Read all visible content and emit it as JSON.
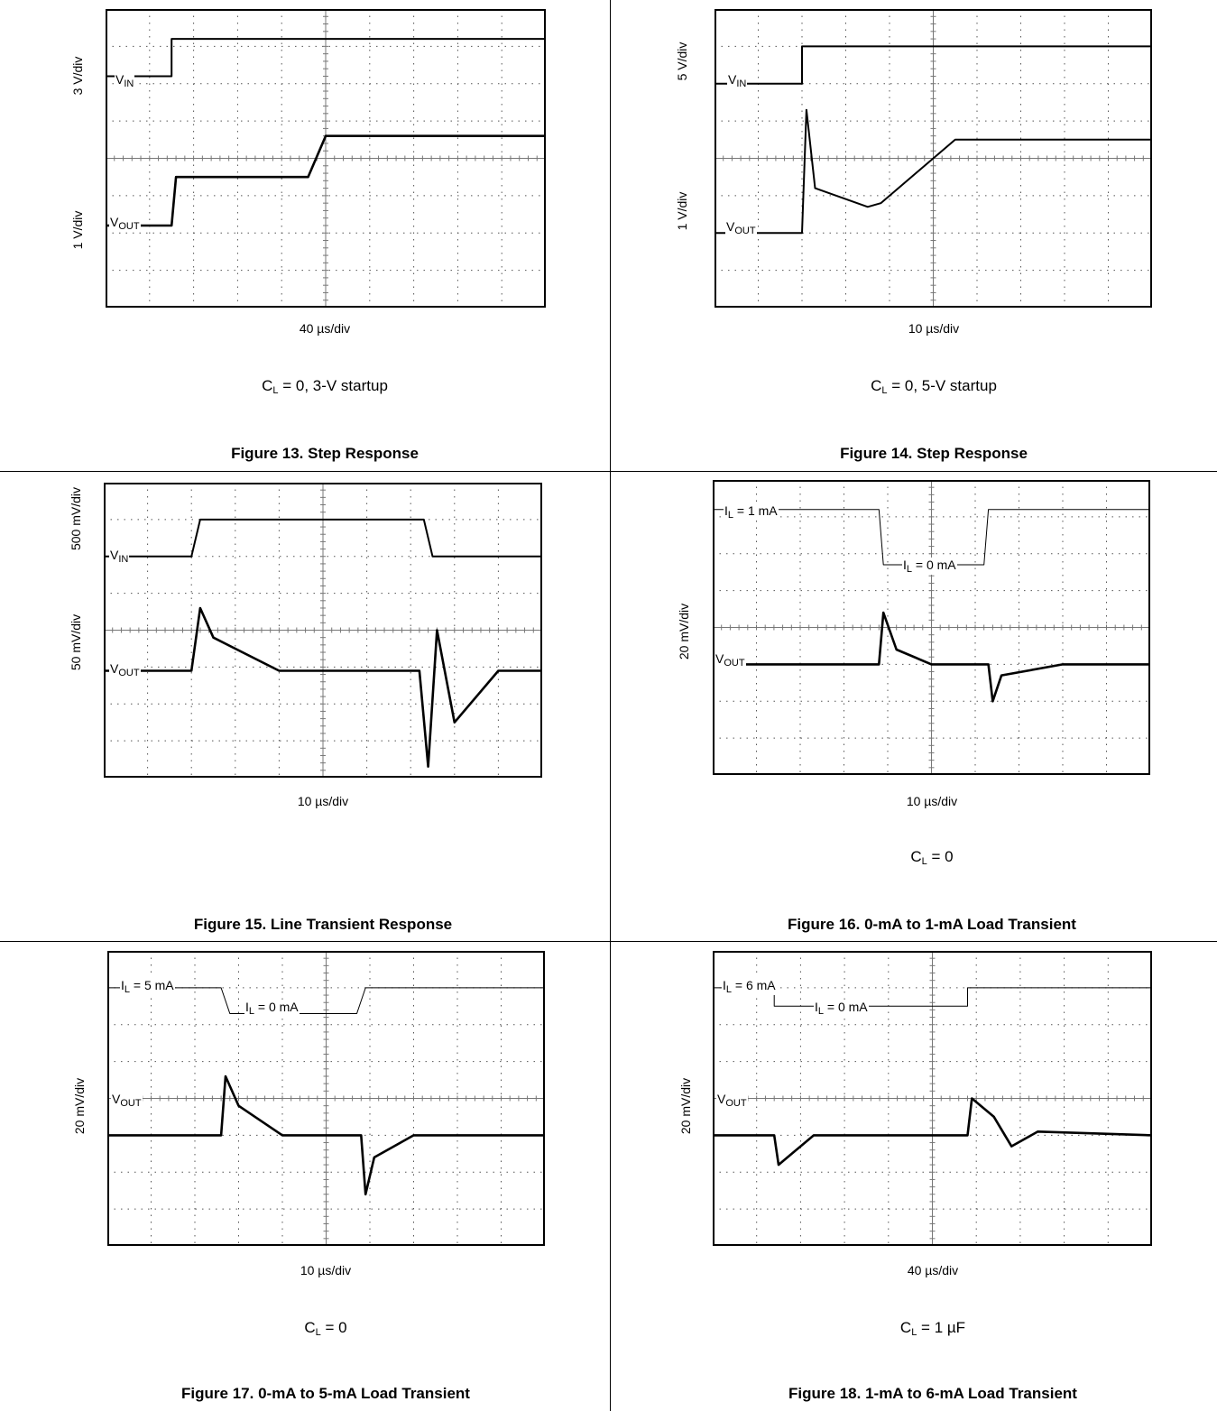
{
  "figures": [
    {
      "id": "fig13",
      "caption": "Figure 13. Step Response",
      "xdiv": "40 µs/div",
      "condition": {
        "main": "C",
        "sub": "L",
        "rest": " = 0, 3-V startup"
      },
      "ylabels": [
        "3 V/div",
        "1 V/div"
      ],
      "traces": [
        {
          "label_main": "V",
          "label_sub": "IN"
        },
        {
          "label_main": "V",
          "label_sub": "OUT"
        }
      ]
    },
    {
      "id": "fig14",
      "caption": "Figure 14. Step Response",
      "xdiv": "10 µs/div",
      "condition": {
        "main": "C",
        "sub": "L",
        "rest": " = 0, 5-V startup"
      },
      "ylabels": [
        "5 V/div",
        "1 V/div"
      ],
      "traces": [
        {
          "label_main": "V",
          "label_sub": "IN"
        },
        {
          "label_main": "V",
          "label_sub": "OUT"
        }
      ]
    },
    {
      "id": "fig15",
      "caption": "Figure 15. Line Transient Response",
      "xdiv": "10 µs/div",
      "condition": null,
      "ylabels": [
        "500 mV/div",
        "50 mV/div"
      ],
      "traces": [
        {
          "label_main": "V",
          "label_sub": "IN"
        },
        {
          "label_main": "V",
          "label_sub": "OUT"
        }
      ]
    },
    {
      "id": "fig16",
      "caption": "Figure 16. 0-mA to 1-mA Load Transient",
      "xdiv": "10 µs/div",
      "condition": {
        "main": "C",
        "sub": "L",
        "rest": " = 0"
      },
      "ylabels": [
        "20 mV/div"
      ],
      "traces": [
        {
          "label_main": "I",
          "label_sub": "L",
          "rest": " = 1 mA"
        },
        {
          "label_main": "I",
          "label_sub": "L",
          "rest": " = 0 mA"
        },
        {
          "label_main": "V",
          "label_sub": "OUT"
        }
      ]
    },
    {
      "id": "fig17",
      "caption": "Figure 17. 0-mA to 5-mA Load Transient",
      "xdiv": "10 µs/div",
      "condition": {
        "main": "C",
        "sub": "L",
        "rest": " = 0"
      },
      "ylabels": [
        "20 mV/div"
      ],
      "traces": [
        {
          "label_main": "I",
          "label_sub": "L",
          "rest": " = 5 mA"
        },
        {
          "label_main": "I",
          "label_sub": "L",
          "rest": " = 0 mA"
        },
        {
          "label_main": "V",
          "label_sub": "OUT"
        }
      ]
    },
    {
      "id": "fig18",
      "caption": "Figure 18. 1-mA to 6-mA Load Transient",
      "xdiv": "40 µs/div",
      "condition": {
        "main": "C",
        "sub": "L",
        "rest": " = 1 µF"
      },
      "ylabels": [
        "20 mV/div"
      ],
      "traces": [
        {
          "label_main": "I",
          "label_sub": "L",
          "rest": " = 6 mA"
        },
        {
          "label_main": "I",
          "label_sub": "L",
          "rest": " = 0 mA"
        },
        {
          "label_main": "V",
          "label_sub": "OUT"
        }
      ]
    }
  ],
  "chart_data": [
    {
      "type": "line",
      "title": "Figure 13. Step Response",
      "xlabel": "40 µs/div",
      "x_divisions": [
        0,
        10
      ],
      "y_divisions": [
        0,
        8
      ],
      "series": [
        {
          "name": "VIN",
          "x": [
            0,
            1.5,
            1.5,
            10
          ],
          "y": [
            6.2,
            6.2,
            7.2,
            7.2
          ]
        },
        {
          "name": "VOUT",
          "x": [
            0,
            1.5,
            1.6,
            4.6,
            5,
            10
          ],
          "y": [
            2.2,
            2.2,
            3.5,
            3.5,
            4.6,
            4.6
          ]
        }
      ]
    },
    {
      "type": "line",
      "title": "Figure 14. Step Response",
      "xlabel": "10 µs/div",
      "x_divisions": [
        0,
        10
      ],
      "y_divisions": [
        0,
        8
      ],
      "series": [
        {
          "name": "VIN",
          "x": [
            0,
            2,
            2,
            10
          ],
          "y": [
            6.0,
            6.0,
            7.0,
            7.0
          ]
        },
        {
          "name": "VOUT",
          "x": [
            0,
            2,
            2.1,
            2.3,
            3.5,
            3.8,
            5.5,
            10
          ],
          "y": [
            2.0,
            2.0,
            5.3,
            3.2,
            2.7,
            2.8,
            4.5,
            4.5
          ]
        }
      ]
    },
    {
      "type": "line",
      "title": "Figure 15. Line Transient Response",
      "xlabel": "10 µs/div",
      "x_divisions": [
        0,
        10
      ],
      "y_divisions": [
        0,
        8
      ],
      "series": [
        {
          "name": "VIN",
          "x": [
            0,
            2,
            2.2,
            7.3,
            7.5,
            10
          ],
          "y": [
            6.0,
            6.0,
            7.0,
            7.0,
            6.0,
            6.0
          ]
        },
        {
          "name": "VOUT",
          "x": [
            0,
            2,
            2.2,
            2.5,
            4,
            7.2,
            7.4,
            7.6,
            8,
            9,
            10
          ],
          "y": [
            2.9,
            2.9,
            4.6,
            3.8,
            2.9,
            2.9,
            0.3,
            4.0,
            1.5,
            2.9,
            2.9
          ]
        }
      ]
    },
    {
      "type": "line",
      "title": "Figure 16. 0-mA to 1-mA Load Transient",
      "xlabel": "10 µs/div",
      "x_divisions": [
        0,
        10
      ],
      "y_divisions": [
        0,
        8
      ],
      "series": [
        {
          "name": "IL",
          "x": [
            0,
            3.8,
            3.9,
            6.2,
            6.3,
            10
          ],
          "y": [
            7.2,
            7.2,
            5.7,
            5.7,
            7.2,
            7.2
          ]
        },
        {
          "name": "VOUT",
          "x": [
            0,
            3.8,
            3.9,
            4.2,
            5,
            6.3,
            6.4,
            6.6,
            8,
            10
          ],
          "y": [
            3.0,
            3.0,
            4.4,
            3.4,
            3.0,
            3.0,
            2.0,
            2.7,
            3.0,
            3.0
          ]
        }
      ]
    },
    {
      "type": "line",
      "title": "Figure 17. 0-mA to 5-mA Load Transient",
      "xlabel": "10 µs/div",
      "x_divisions": [
        0,
        10
      ],
      "y_divisions": [
        0,
        8
      ],
      "series": [
        {
          "name": "IL",
          "x": [
            0,
            2.6,
            2.8,
            5.7,
            5.9,
            10
          ],
          "y": [
            7.0,
            7.0,
            6.3,
            6.3,
            7.0,
            7.0
          ]
        },
        {
          "name": "VOUT",
          "x": [
            0,
            2.6,
            2.7,
            3,
            4,
            5.8,
            5.9,
            6.1,
            7,
            10
          ],
          "y": [
            3.0,
            3.0,
            4.6,
            3.8,
            3.0,
            3.0,
            1.4,
            2.4,
            3.0,
            3.0
          ]
        }
      ]
    },
    {
      "type": "line",
      "title": "Figure 18. 1-mA to 6-mA Load Transient",
      "xlabel": "40 µs/div",
      "x_divisions": [
        0,
        10
      ],
      "y_divisions": [
        0,
        8
      ],
      "series": [
        {
          "name": "IL",
          "x": [
            0,
            1.4,
            1.4,
            5.8,
            5.8,
            10
          ],
          "y": [
            7.0,
            7.0,
            6.5,
            6.5,
            7.0,
            7.0
          ]
        },
        {
          "name": "VOUT",
          "x": [
            0,
            1.4,
            1.5,
            1.8,
            2.3,
            5.8,
            5.9,
            6.4,
            6.8,
            7.4,
            10
          ],
          "y": [
            3.0,
            3.0,
            2.2,
            2.5,
            3.0,
            3.0,
            4.0,
            3.5,
            2.7,
            3.1,
            3.0
          ]
        }
      ]
    }
  ]
}
